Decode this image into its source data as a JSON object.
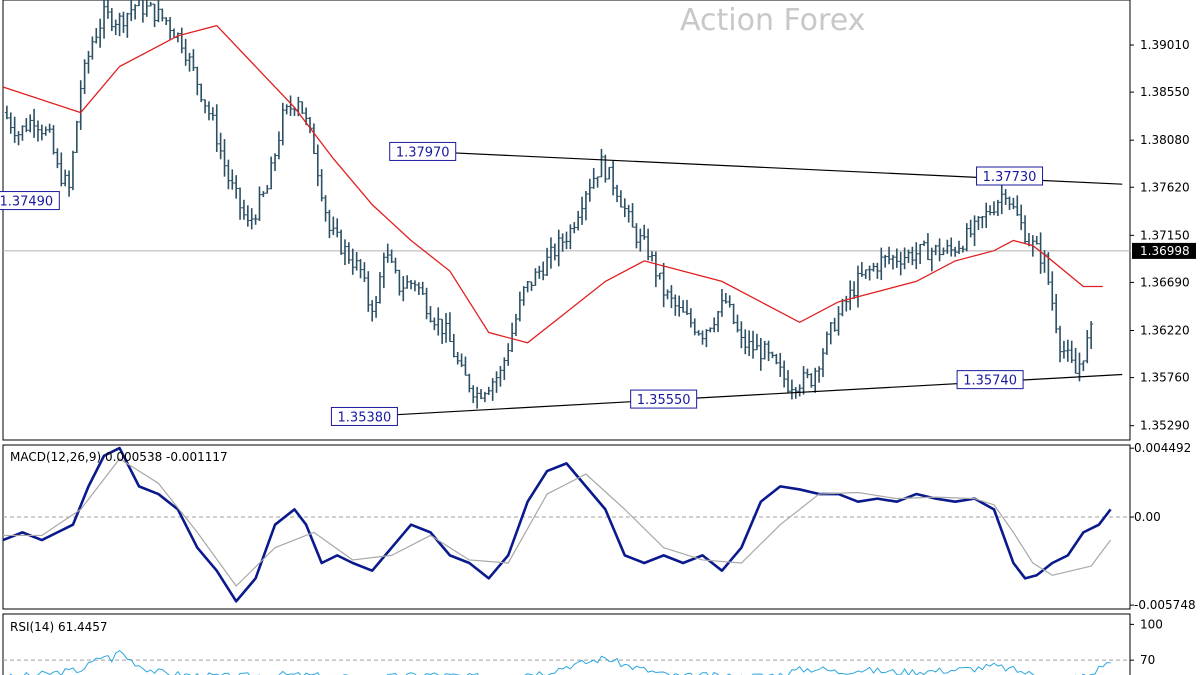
{
  "watermark": "Action Forex",
  "colors": {
    "bar": "#2c4f63",
    "ma": "#e02020",
    "trend": "#000000",
    "label_border": "#1a1aa0",
    "label_text": "#1a1aa0",
    "macd": "#0a1a8c",
    "signal": "#a8a8a8",
    "rsi": "#2ba8e0",
    "grid": "#a0a0a0",
    "current_bg": "#000000",
    "current_text": "#ffffff"
  },
  "chart_data": [
    {
      "type": "line",
      "panel": "price",
      "ylim": [
        1.3515,
        1.3945
      ],
      "y_ticks": [
        "1.39010",
        "1.38550",
        "1.38080",
        "1.37620",
        "1.37150",
        "1.36690",
        "1.36220",
        "1.35760",
        "1.35290"
      ],
      "current_price": "1.36998",
      "level_labels": [
        {
          "text": "1.37490",
          "x": 6,
          "y": 1.3749
        },
        {
          "text": "1.37970",
          "x": 108,
          "y": 1.3797
        },
        {
          "text": "1.37730",
          "x": 259,
          "y": 1.3773
        },
        {
          "text": "1.35380",
          "x": 93,
          "y": 1.3538
        },
        {
          "text": "1.35550",
          "x": 170,
          "y": 1.3555
        },
        {
          "text": "1.35740",
          "x": 254,
          "y": 1.3574
        }
      ],
      "trendlines": [
        {
          "x": [
            108,
            288
          ],
          "y": [
            1.3797,
            1.3765
          ]
        },
        {
          "x": [
            93,
            288
          ],
          "y": [
            1.3538,
            1.3579
          ]
        }
      ],
      "price_points": {
        "x": [
          0,
          4,
          8,
          12,
          14,
          17,
          20,
          23,
          26,
          30,
          34,
          38,
          42,
          46,
          50,
          54,
          58,
          63,
          68,
          72,
          76,
          80,
          84,
          88,
          92,
          94,
          96,
          98,
          102,
          106,
          110,
          114,
          118,
          122,
          128,
          134,
          140,
          146,
          150,
          154,
          158,
          162,
          166,
          170,
          174,
          180,
          186,
          190,
          196,
          202,
          208,
          214,
          220,
          226,
          232,
          238,
          244,
          250,
          254,
          258,
          260,
          264,
          268,
          272,
          276,
          280,
          284,
          288
        ],
        "y": [
          1.3835,
          1.3815,
          1.383,
          1.381,
          1.378,
          1.376,
          1.386,
          1.3905,
          1.393,
          1.3925,
          1.394,
          1.3935,
          1.3925,
          1.3905,
          1.3865,
          1.3825,
          1.377,
          1.3725,
          1.376,
          1.383,
          1.385,
          1.38,
          1.372,
          1.37,
          1.368,
          1.365,
          1.3645,
          1.37,
          1.3665,
          1.367,
          1.364,
          1.362,
          1.358,
          1.356,
          1.358,
          1.366,
          1.369,
          1.372,
          1.376,
          1.3785,
          1.376,
          1.372,
          1.37,
          1.366,
          1.364,
          1.362,
          1.365,
          1.361,
          1.36,
          1.357,
          1.3575,
          1.363,
          1.367,
          1.369,
          1.3695,
          1.37,
          1.37,
          1.372,
          1.374,
          1.376,
          1.374,
          1.371,
          1.369,
          1.361,
          1.358,
          1.362,
          1.366,
          1.371
        ]
      },
      "ma_points": {
        "x": [
          0,
          20,
          30,
          45,
          55,
          65,
          75,
          85,
          95,
          105,
          115,
          125,
          135,
          145,
          155,
          165,
          175,
          185,
          195,
          205,
          215,
          225,
          235,
          245,
          255,
          260,
          265,
          270,
          278,
          283
        ],
        "y": [
          1.386,
          1.3835,
          1.388,
          1.391,
          1.392,
          1.388,
          1.384,
          1.379,
          1.3745,
          1.371,
          1.368,
          1.362,
          1.361,
          1.364,
          1.367,
          1.369,
          1.368,
          1.367,
          1.365,
          1.363,
          1.365,
          1.366,
          1.367,
          1.369,
          1.37,
          1.371,
          1.3705,
          1.369,
          1.3665,
          1.3665
        ]
      }
    },
    {
      "type": "line",
      "panel": "macd",
      "title": "MACD(12,26,9) 0.000538 -0.001117",
      "ylim": [
        -0.006,
        0.0047
      ],
      "y_ticks": [
        {
          "label": "0.004492",
          "value": 0.004492
        },
        {
          "label": "0.00",
          "value": 0.0
        },
        {
          "label": "-0.005748",
          "value": -0.005748
        }
      ],
      "series": [
        {
          "role": "macd",
          "x": [
            0,
            5,
            10,
            14,
            18,
            22,
            26,
            30,
            35,
            40,
            45,
            50,
            55,
            60,
            65,
            70,
            75,
            78,
            82,
            86,
            90,
            95,
            100,
            105,
            110,
            115,
            120,
            125,
            130,
            135,
            140,
            145,
            150,
            155,
            160,
            165,
            170,
            175,
            180,
            185,
            190,
            195,
            200,
            205,
            210,
            215,
            220,
            225,
            230,
            235,
            240,
            245,
            250,
            255,
            260,
            263,
            266,
            270,
            274,
            278,
            282,
            285
          ],
          "y": [
            -0.0015,
            -0.001,
            -0.0015,
            -0.001,
            -0.0005,
            0.002,
            0.004,
            0.0045,
            0.002,
            0.0015,
            0.0005,
            -0.002,
            -0.0035,
            -0.0055,
            -0.004,
            -0.0005,
            0.0005,
            -0.0005,
            -0.003,
            -0.0025,
            -0.003,
            -0.0035,
            -0.002,
            -0.0005,
            -0.001,
            -0.0025,
            -0.003,
            -0.004,
            -0.0025,
            0.001,
            0.003,
            0.0035,
            0.002,
            0.0005,
            -0.0025,
            -0.003,
            -0.0025,
            -0.003,
            -0.0025,
            -0.0035,
            -0.002,
            0.001,
            0.002,
            0.0018,
            0.0015,
            0.0015,
            0.001,
            0.0012,
            0.001,
            0.0015,
            0.0012,
            0.001,
            0.0012,
            0.0005,
            -0.003,
            -0.004,
            -0.0038,
            -0.003,
            -0.0025,
            -0.001,
            -0.0005,
            0.0005
          ]
        },
        {
          "role": "signal",
          "x": [
            0,
            10,
            20,
            30,
            40,
            50,
            60,
            70,
            80,
            90,
            100,
            110,
            120,
            130,
            140,
            150,
            160,
            170,
            180,
            190,
            200,
            210,
            220,
            230,
            240,
            250,
            255,
            260,
            265,
            270,
            280,
            285
          ],
          "y": [
            -0.0012,
            -0.0012,
            0.0005,
            0.0038,
            0.0022,
            -0.001,
            -0.0045,
            -0.002,
            -0.001,
            -0.0028,
            -0.0025,
            -0.0012,
            -0.0028,
            -0.003,
            0.0015,
            0.0028,
            0.0005,
            -0.002,
            -0.0028,
            -0.003,
            -0.0005,
            0.0015,
            0.0016,
            0.0012,
            0.0013,
            0.0012,
            0.0008,
            -0.001,
            -0.003,
            -0.0038,
            -0.0032,
            -0.0015
          ]
        }
      ]
    },
    {
      "type": "line",
      "panel": "rsi",
      "title": "RSI(14) 61.4457",
      "ylim": [
        50,
        102
      ],
      "y_ticks": [
        {
          "label": "100",
          "value": 100
        },
        {
          "label": "70",
          "value": 70
        }
      ],
      "series": [
        {
          "role": "rsi",
          "x": [
            0,
            10,
            20,
            24,
            26,
            28,
            30,
            32,
            34,
            36,
            40,
            45,
            50,
            60,
            70,
            80,
            90,
            100,
            110,
            120,
            140,
            145,
            150,
            155,
            160,
            165,
            170,
            175,
            180,
            190,
            200,
            205,
            210,
            215,
            220,
            230,
            240,
            250,
            255,
            260,
            265,
            270,
            275,
            280,
            283,
            285
          ],
          "y": [
            55,
            58,
            62,
            70,
            74,
            71,
            78,
            72,
            68,
            64,
            60,
            58,
            57,
            56,
            58,
            57,
            55,
            56,
            58,
            56,
            60,
            65,
            68,
            72,
            66,
            62,
            58,
            56,
            57,
            56,
            58,
            62,
            63,
            60,
            62,
            60,
            61,
            63,
            65,
            62,
            58,
            56,
            55,
            58,
            66,
            68
          ]
        }
      ]
    }
  ]
}
